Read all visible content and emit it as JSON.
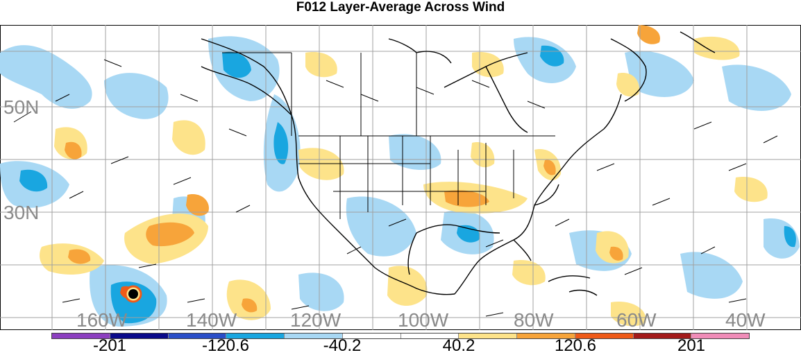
{
  "title": "F012 Layer-Average Across Wind",
  "map": {
    "lat_labels": [
      "50N",
      "30N"
    ],
    "lon_labels": [
      "160W",
      "140W",
      "120W",
      "100W",
      "80W",
      "60W",
      "40W"
    ],
    "land_color": "#ffffff",
    "line_color": "#000000",
    "grid_color": "#a0a0a0"
  },
  "legend": {
    "colors": [
      "#8c3fc0",
      "#0a0a8a",
      "#2a4ec8",
      "#19a6e0",
      "#a8d8f4",
      "#ffffff",
      "#ffffff",
      "#fde38a",
      "#f7a43a",
      "#ef5a18",
      "#a31a1a",
      "#f08cb8"
    ],
    "labels": [
      "-201",
      "-120.6",
      "-40.2",
      "40.2",
      "120.6",
      "201"
    ]
  }
}
